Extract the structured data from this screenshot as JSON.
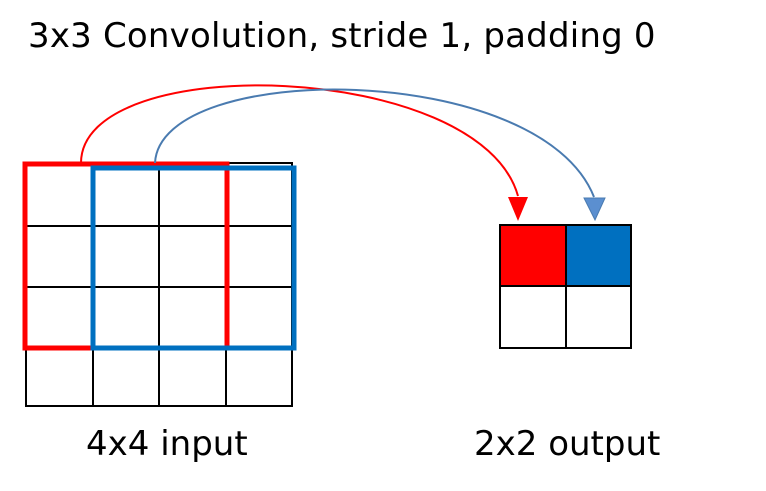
{
  "title": "3x3 Convolution, stride 1, padding 0",
  "input_label": "4x4 input",
  "output_label": "2x2 output",
  "input_grid": {
    "rows": 4,
    "cols": 4
  },
  "output_grid": {
    "rows": 2,
    "cols": 2
  },
  "kernel_windows": [
    {
      "name": "first-window",
      "color": "#ff0000",
      "output_cell": [
        0,
        0
      ]
    },
    {
      "name": "second-window",
      "color": "#0070c0",
      "output_cell": [
        0,
        1
      ]
    }
  ],
  "colors": {
    "red": "#ff0000",
    "blue": "#0070c0",
    "blue_arrow": "#4a7bb0",
    "grid": "#000000"
  }
}
